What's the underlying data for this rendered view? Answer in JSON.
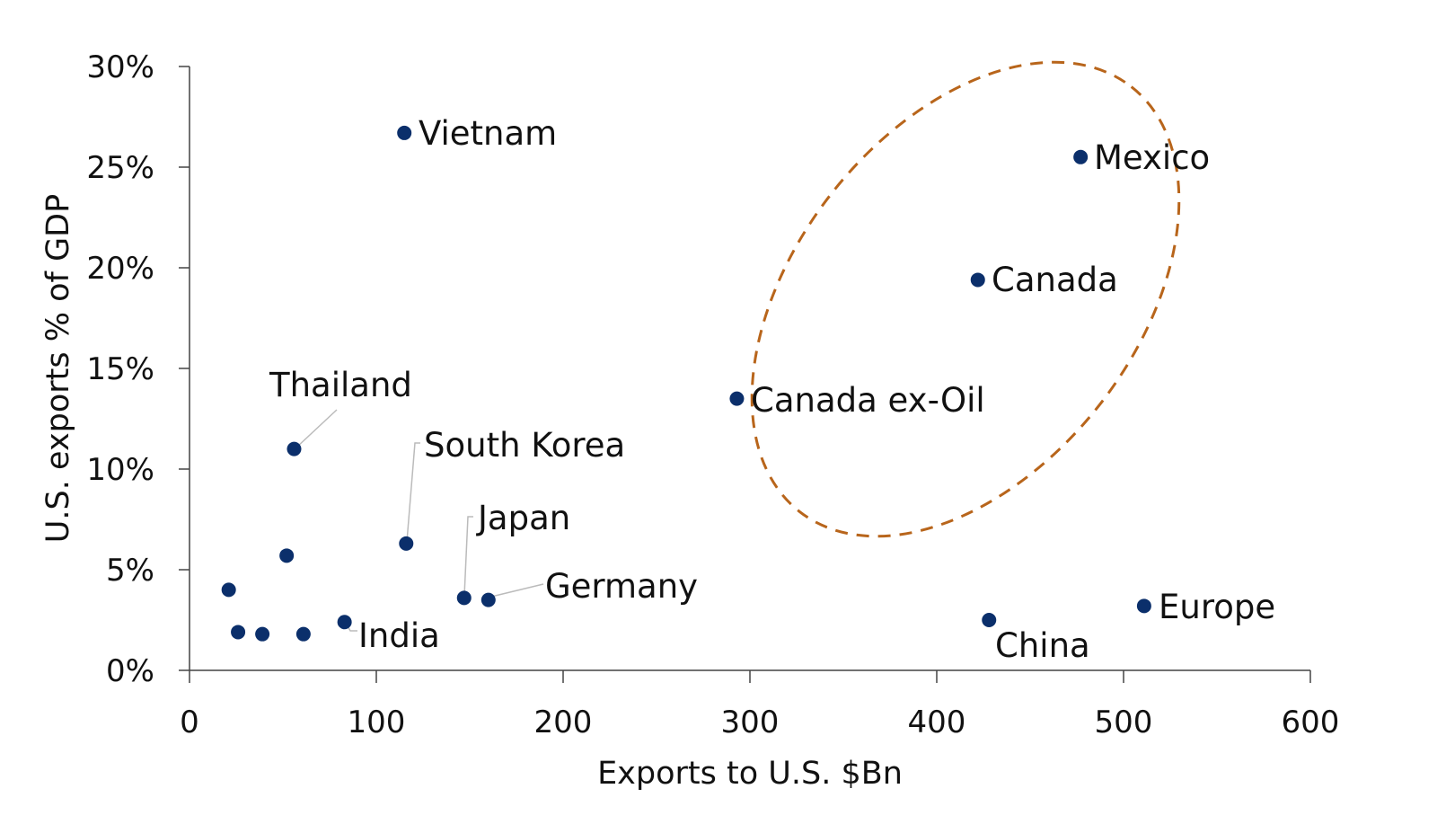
{
  "chart_data": {
    "type": "scatter",
    "title": "",
    "xlabel": "Exports to U.S. $Bn",
    "ylabel": "U.S. exports  % of GDP",
    "xlim": [
      0,
      600
    ],
    "ylim": [
      0,
      30
    ],
    "x_ticks": [
      "0",
      "100",
      "200",
      "300",
      "400",
      "500",
      "600"
    ],
    "y_ticks": [
      "0%",
      "5%",
      "10%",
      "15%",
      "20%",
      "25%",
      "30%"
    ],
    "grid": false,
    "legend": null,
    "marker_color": "#0b2f6b",
    "annotation_color": "#b8651b",
    "annotation": "dashed ellipse around Mexico, Canada, Canada ex-Oil",
    "points": [
      {
        "label": "Vietnam",
        "x": 115,
        "y": 26.7
      },
      {
        "label": "Mexico",
        "x": 477,
        "y": 25.5
      },
      {
        "label": "Canada",
        "x": 422,
        "y": 19.4
      },
      {
        "label": "Canada ex-Oil",
        "x": 293,
        "y": 13.5
      },
      {
        "label": "Thailand",
        "x": 56,
        "y": 11.0
      },
      {
        "label": "South Korea",
        "x": 116,
        "y": 6.3
      },
      {
        "label": "Japan",
        "x": 147,
        "y": 3.6
      },
      {
        "label": "Germany",
        "x": 160,
        "y": 3.5
      },
      {
        "label": "India",
        "x": 83,
        "y": 2.4
      },
      {
        "label": "China",
        "x": 428,
        "y": 2.5
      },
      {
        "label": "Europe",
        "x": 511,
        "y": 3.2
      },
      {
        "label": "",
        "x": 52,
        "y": 5.7
      },
      {
        "label": "",
        "x": 21,
        "y": 4.0
      },
      {
        "label": "",
        "x": 26,
        "y": 1.9
      },
      {
        "label": "",
        "x": 39,
        "y": 1.8
      },
      {
        "label": "",
        "x": 61,
        "y": 1.8
      }
    ]
  }
}
